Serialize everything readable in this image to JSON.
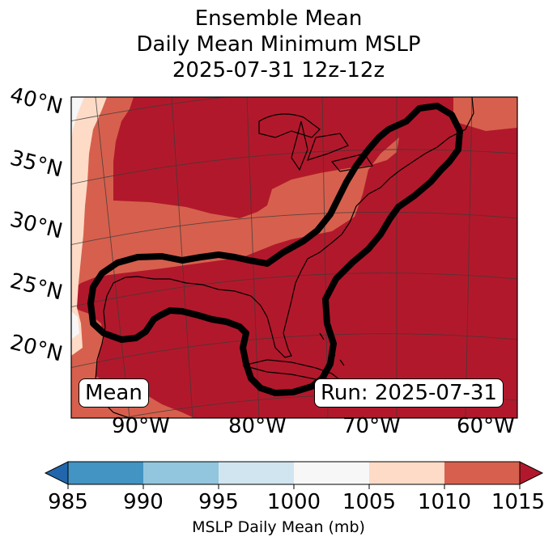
{
  "title": {
    "line1": "Ensemble Mean",
    "line2": "Daily Mean Minimum MSLP",
    "line3": "2025-07-31 12z-12z"
  },
  "map": {
    "lat_labels": [
      "40°N",
      "35°N",
      "30°N",
      "25°N",
      "20°N"
    ],
    "lon_labels": [
      "90°W",
      "80°W",
      "70°W",
      "60°W"
    ],
    "badge_left": "Mean",
    "badge_right": "Run: 2025-07-31"
  },
  "colorbar": {
    "label": "MSLP Daily Mean (mb)",
    "ticks": [
      "985",
      "990",
      "995",
      "1000",
      "1005",
      "1010",
      "1015"
    ],
    "colors": [
      "#2166ac",
      "#4393c3",
      "#92c5de",
      "#d1e5f0",
      "#f7f7f7",
      "#fddbc7",
      "#d6604d",
      "#b2182b"
    ],
    "extend": "both"
  },
  "fill_colors": {
    "band_1000_1005": "#f7f7f7",
    "band_1005_1010": "#fddbc7",
    "band_1010_1015": "#d6604d",
    "above_1015": "#b2182b"
  }
}
